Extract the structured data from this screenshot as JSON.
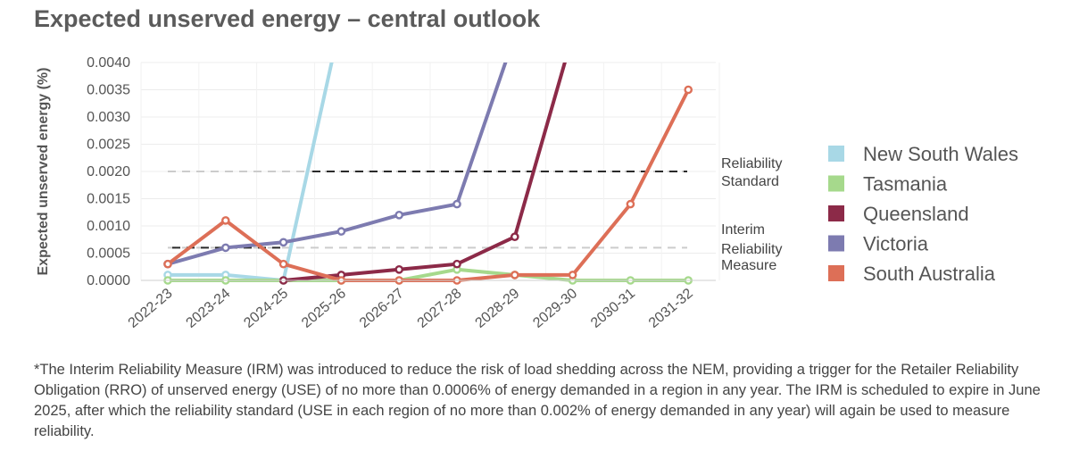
{
  "chart_data": {
    "type": "line",
    "title": "Expected unserved energy – central outlook",
    "ylabel": "Expected unserved energy (%)",
    "xlabel": "",
    "categories": [
      "2022-23",
      "2023-24",
      "2024-25",
      "2025-26",
      "2026-27",
      "2027-28",
      "2028-29",
      "2029-30",
      "2030-31",
      "2031-32"
    ],
    "ylim": [
      0,
      0.004
    ],
    "yticks": [
      "0.0000",
      "0.0005",
      "0.0010",
      "0.0015",
      "0.0020",
      "0.0025",
      "0.0030",
      "0.0035",
      "0.0040"
    ],
    "grid": true,
    "legend_position": "right",
    "series": [
      {
        "name": "New South Wales",
        "color": "#a8d8e6",
        "values": [
          0.0001,
          0.0001,
          0.0,
          0.0048,
          null,
          null,
          null,
          null,
          null,
          null
        ]
      },
      {
        "name": "Tasmania",
        "color": "#a6d98c",
        "values": [
          0.0,
          0.0,
          0.0,
          0.0,
          0.0,
          0.0002,
          0.0001,
          0.0,
          0.0,
          0.0
        ]
      },
      {
        "name": "Queensland",
        "color": "#8c2a48",
        "values": [
          null,
          null,
          0.0,
          0.0001,
          0.0002,
          0.0003,
          0.0008,
          0.0045,
          null,
          null
        ]
      },
      {
        "name": "Victoria",
        "color": "#7d7bb0",
        "values": [
          0.0003,
          0.0006,
          0.0007,
          0.0009,
          0.0012,
          0.0014,
          0.0045,
          null,
          null,
          null
        ]
      },
      {
        "name": "South Australia",
        "color": "#dd6f57",
        "values": [
          0.0003,
          0.0011,
          0.0003,
          0.0,
          0.0,
          0.0,
          0.0001,
          0.0001,
          0.0014,
          0.0035
        ]
      }
    ],
    "reference_lines": [
      {
        "name": "Reliability Standard",
        "value": 0.002,
        "label_lines": [
          "Reliability",
          "Standard"
        ]
      },
      {
        "name": "Interim Reliability Measure",
        "value": 0.0006,
        "label_lines": [
          "Interim",
          "Reliability",
          "Measure"
        ]
      }
    ]
  },
  "footnote": "*The Interim Reliability Measure (IRM) was introduced to reduce the risk of load shedding across the NEM, providing a trigger for the Retailer Reliability Obligation (RRO) of unserved energy (USE) of no more than 0.0006% of energy demanded in a region in any year. The IRM is scheduled to expire in June 2025, after which the reliability standard (USE in each region of no more than 0.002% of energy demanded in any year) will again be used to measure reliability."
}
